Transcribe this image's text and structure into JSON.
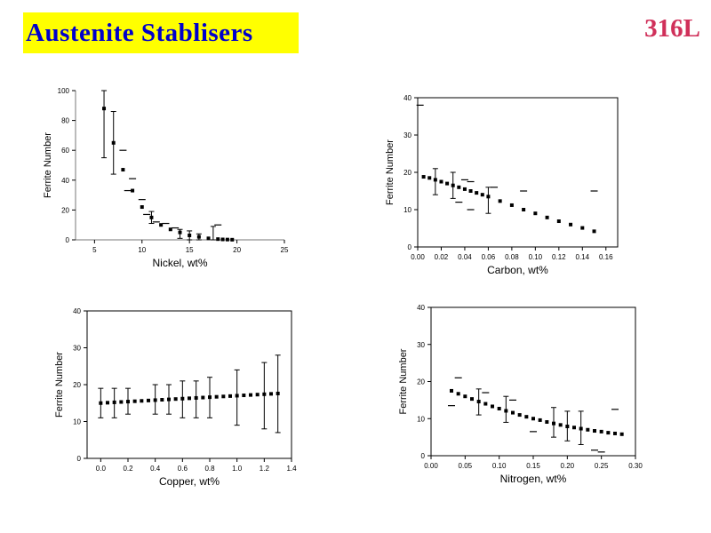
{
  "header": {
    "title": "Austenite Stablisers",
    "grade": "316L"
  },
  "colors": {
    "title_bg": "#ffff00",
    "title_text": "#0000cc",
    "grade_text": "#d0305a"
  },
  "chart_data": [
    {
      "type": "scatter",
      "xlabel": "Nickel, wt%",
      "ylabel": "Ferrite Number",
      "xlim": [
        3,
        25
      ],
      "ylim": [
        0,
        100
      ],
      "xticks": [
        "5",
        "10",
        "15",
        "20",
        "25"
      ],
      "yticks": [
        "0",
        "20",
        "40",
        "60",
        "80",
        "100"
      ],
      "frame": "open",
      "series": [
        {
          "x": [
            6,
            7,
            8,
            9,
            10,
            11,
            12,
            13,
            14,
            15,
            16,
            17,
            18,
            18.5,
            19,
            19.5
          ],
          "y": [
            88,
            65,
            47,
            33,
            22,
            15,
            10,
            7,
            5,
            3,
            2,
            1,
            0.5,
            0.3,
            0.2,
            0.1
          ]
        }
      ],
      "error_bars": [
        {
          "x": 6,
          "low": 55,
          "high": 100
        },
        {
          "x": 7,
          "low": 44,
          "high": 86
        },
        {
          "x": 11,
          "low": 11,
          "high": 19
        },
        {
          "x": 14,
          "low": 1,
          "high": 7
        },
        {
          "x": 15,
          "low": 0,
          "high": 6
        },
        {
          "x": 16,
          "low": 0,
          "high": 4
        },
        {
          "x": 17.5,
          "low": 0,
          "high": 9
        }
      ],
      "scatter_points": [
        {
          "x": 8,
          "y": 60
        },
        {
          "x": 9,
          "y": 41
        },
        {
          "x": 8.5,
          "y": 33
        },
        {
          "x": 10,
          "y": 27
        },
        {
          "x": 10.5,
          "y": 17
        },
        {
          "x": 11.5,
          "y": 12
        },
        {
          "x": 12.5,
          "y": 11
        },
        {
          "x": 13.5,
          "y": 8
        },
        {
          "x": 18,
          "y": 10
        }
      ]
    },
    {
      "type": "scatter",
      "xlabel": "Carbon, wt%",
      "ylabel": "Ferrite Number",
      "xlim": [
        0,
        0.17
      ],
      "ylim": [
        0,
        40
      ],
      "xticks": [
        "0.00",
        "0.02",
        "0.04",
        "0.06",
        "0.08",
        "0.10",
        "0.12",
        "0.14",
        "0.16"
      ],
      "yticks": [
        "0",
        "10",
        "20",
        "30",
        "40"
      ],
      "frame": "box",
      "series": [
        {
          "x": [
            0.005,
            0.01,
            0.015,
            0.02,
            0.025,
            0.03,
            0.035,
            0.04,
            0.045,
            0.05,
            0.055,
            0.06,
            0.07,
            0.08,
            0.09,
            0.1,
            0.11,
            0.12,
            0.13,
            0.14,
            0.15
          ],
          "y": [
            18.8,
            18.5,
            18.0,
            17.5,
            17.0,
            16.5,
            16.0,
            15.5,
            15.0,
            14.5,
            14.0,
            13.5,
            12.3,
            11.2,
            10.0,
            9.0,
            7.9,
            6.9,
            6.0,
            5.1,
            4.2
          ]
        }
      ],
      "error_bars": [
        {
          "x": 0.015,
          "low": 14,
          "high": 21
        },
        {
          "x": 0.03,
          "low": 13,
          "high": 20
        },
        {
          "x": 0.06,
          "low": 9,
          "high": 16
        }
      ],
      "scatter_points": [
        {
          "x": 0.002,
          "y": 38
        },
        {
          "x": 0.04,
          "y": 18
        },
        {
          "x": 0.045,
          "y": 17.5
        },
        {
          "x": 0.035,
          "y": 12
        },
        {
          "x": 0.045,
          "y": 10
        },
        {
          "x": 0.065,
          "y": 16
        },
        {
          "x": 0.09,
          "y": 15
        },
        {
          "x": 0.15,
          "y": 15
        }
      ]
    },
    {
      "type": "scatter",
      "xlabel": "Copper, wt%",
      "ylabel": "Ferrite Number",
      "xlim": [
        -0.1,
        1.4
      ],
      "ylim": [
        0,
        40
      ],
      "xticks": [
        "0.0",
        "0.2",
        "0.4",
        "0.6",
        "0.8",
        "1.0",
        "1.2",
        "1.4"
      ],
      "yticks": [
        "0",
        "10",
        "20",
        "30",
        "40"
      ],
      "frame": "box",
      "series": [
        {
          "x": [
            0.0,
            0.05,
            0.1,
            0.15,
            0.2,
            0.25,
            0.3,
            0.35,
            0.4,
            0.45,
            0.5,
            0.55,
            0.6,
            0.65,
            0.7,
            0.75,
            0.8,
            0.85,
            0.9,
            0.95,
            1.0,
            1.05,
            1.1,
            1.15,
            1.2,
            1.25,
            1.3
          ],
          "y": [
            15.0,
            15.1,
            15.2,
            15.3,
            15.4,
            15.5,
            15.6,
            15.7,
            15.8,
            15.9,
            16.0,
            16.1,
            16.2,
            16.3,
            16.4,
            16.5,
            16.6,
            16.7,
            16.8,
            16.9,
            17.0,
            17.1,
            17.2,
            17.3,
            17.4,
            17.5,
            17.6
          ]
        }
      ],
      "error_bars": [
        {
          "x": 0.0,
          "low": 11,
          "high": 19
        },
        {
          "x": 0.1,
          "low": 11,
          "high": 19
        },
        {
          "x": 0.2,
          "low": 12,
          "high": 19
        },
        {
          "x": 0.4,
          "low": 12,
          "high": 20
        },
        {
          "x": 0.5,
          "low": 12,
          "high": 20
        },
        {
          "x": 0.6,
          "low": 11,
          "high": 21
        },
        {
          "x": 0.7,
          "low": 11,
          "high": 21
        },
        {
          "x": 0.8,
          "low": 11,
          "high": 22
        },
        {
          "x": 1.0,
          "low": 9,
          "high": 24
        },
        {
          "x": 1.2,
          "low": 8,
          "high": 26
        },
        {
          "x": 1.3,
          "low": 7,
          "high": 28
        }
      ],
      "scatter_points": []
    },
    {
      "type": "scatter",
      "xlabel": "Nitrogen, wt%",
      "ylabel": "Ferrite Number",
      "xlim": [
        0,
        0.3
      ],
      "ylim": [
        0,
        40
      ],
      "xticks": [
        "0.00",
        "0.05",
        "0.10",
        "0.15",
        "0.20",
        "0.25",
        "0.30"
      ],
      "yticks": [
        "0",
        "10",
        "20",
        "30",
        "40"
      ],
      "frame": "box",
      "series": [
        {
          "x": [
            0.03,
            0.04,
            0.05,
            0.06,
            0.07,
            0.08,
            0.09,
            0.1,
            0.11,
            0.12,
            0.13,
            0.14,
            0.15,
            0.16,
            0.17,
            0.18,
            0.19,
            0.2,
            0.21,
            0.22,
            0.23,
            0.24,
            0.25,
            0.26,
            0.27,
            0.28
          ],
          "y": [
            17.5,
            16.7,
            16.0,
            15.3,
            14.6,
            14.0,
            13.3,
            12.7,
            12.1,
            11.6,
            11.0,
            10.5,
            10.0,
            9.6,
            9.1,
            8.7,
            8.3,
            7.9,
            7.6,
            7.3,
            7.0,
            6.7,
            6.5,
            6.2,
            6.0,
            5.8
          ]
        }
      ],
      "error_bars": [
        {
          "x": 0.07,
          "low": 11,
          "high": 18
        },
        {
          "x": 0.11,
          "low": 9,
          "high": 16
        },
        {
          "x": 0.18,
          "low": 5,
          "high": 13
        },
        {
          "x": 0.2,
          "low": 4,
          "high": 12
        },
        {
          "x": 0.22,
          "low": 3,
          "high": 12
        }
      ],
      "scatter_points": [
        {
          "x": 0.03,
          "y": 13.5
        },
        {
          "x": 0.04,
          "y": 21
        },
        {
          "x": 0.08,
          "y": 17
        },
        {
          "x": 0.12,
          "y": 15
        },
        {
          "x": 0.15,
          "y": 6.5
        },
        {
          "x": 0.24,
          "y": 1.5
        },
        {
          "x": 0.25,
          "y": 1
        },
        {
          "x": 0.27,
          "y": 12.5
        }
      ]
    }
  ]
}
